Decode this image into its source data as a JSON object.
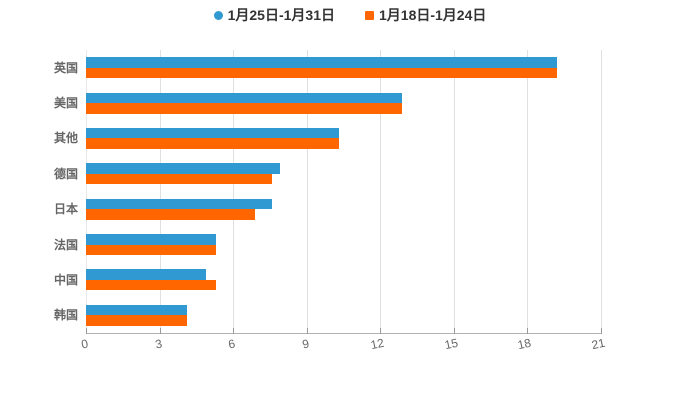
{
  "chart_data": {
    "type": "bar",
    "orientation": "horizontal",
    "title": "",
    "xlabel": "",
    "ylabel": "",
    "categories": [
      "英国",
      "美国",
      "其他",
      "德国",
      "日本",
      "法国",
      "中国",
      "韩国"
    ],
    "series": [
      {
        "name": "1月25日-1月31日",
        "marker": "circle",
        "color": "#3199d1",
        "values": [
          19.2,
          12.9,
          10.3,
          7.9,
          7.6,
          5.3,
          4.9,
          4.1
        ]
      },
      {
        "name": "1月18日-1月24日",
        "marker": "square",
        "color": "#ff6600",
        "values": [
          19.2,
          12.9,
          10.3,
          7.6,
          6.9,
          5.3,
          5.3,
          4.1
        ]
      }
    ],
    "x_ticks": [
      0,
      3,
      6,
      9,
      12,
      15,
      18,
      21
    ],
    "xlim": [
      0,
      21
    ],
    "grid": true,
    "legend_position": "top"
  },
  "colors": {
    "background": "#ffffff",
    "series_blue": "#3199d1",
    "series_orange": "#ff6600",
    "gridline": "#e0e0e0",
    "y_axis_line": "#e8e8e8",
    "axis_line": "#b3b3b3",
    "tick": "#999999",
    "axis_text": "#666666",
    "legend_text": "#333333"
  }
}
